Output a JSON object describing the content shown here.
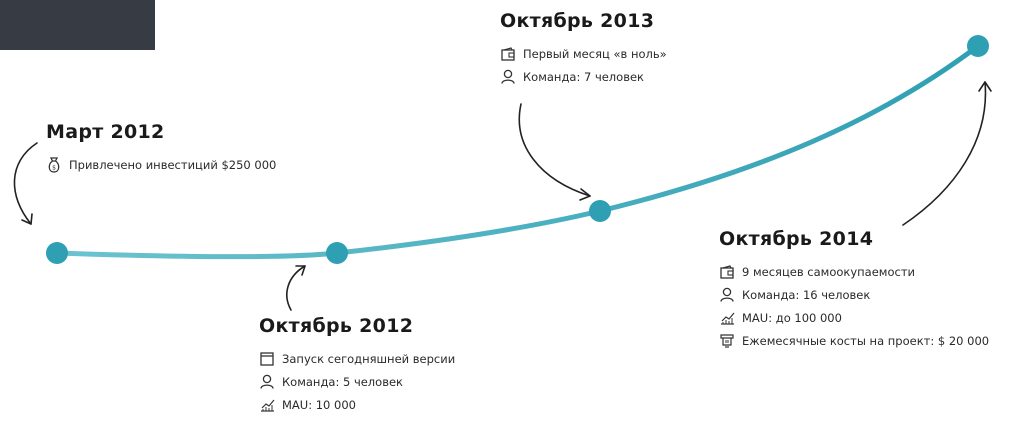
{
  "colors": {
    "line": "#3aaabb",
    "dot": "#2f9fb3",
    "dark_block": "#373b44",
    "arrow": "#222222"
  },
  "milestones": [
    {
      "title": "Март 2012",
      "items": [
        {
          "icon": "money-bag-icon",
          "text": "Привлечено инвестиций $250 000"
        }
      ]
    },
    {
      "title": "Октябрь 2012",
      "items": [
        {
          "icon": "calendar-icon",
          "text": "Запуск сегодняшней версии"
        },
        {
          "icon": "user-icon",
          "text": "Команда: 5 человек"
        },
        {
          "icon": "chart-icon",
          "text": "MAU: 10 000"
        }
      ]
    },
    {
      "title": "Октябрь 2013",
      "items": [
        {
          "icon": "wallet-icon",
          "text": "Первый месяц «в ноль»"
        },
        {
          "icon": "user-icon",
          "text": "Команда: 7 человек"
        }
      ]
    },
    {
      "title": "Октябрь 2014",
      "items": [
        {
          "icon": "wallet-icon",
          "text": "9 месяцев самоокупаемости"
        },
        {
          "icon": "user-icon",
          "text": "Команда: 16 человек"
        },
        {
          "icon": "chart-icon",
          "text": "MAU: до 100 000"
        },
        {
          "icon": "server-icon",
          "text": "Ежемесячные косты на проект: $ 20 000"
        }
      ]
    }
  ]
}
